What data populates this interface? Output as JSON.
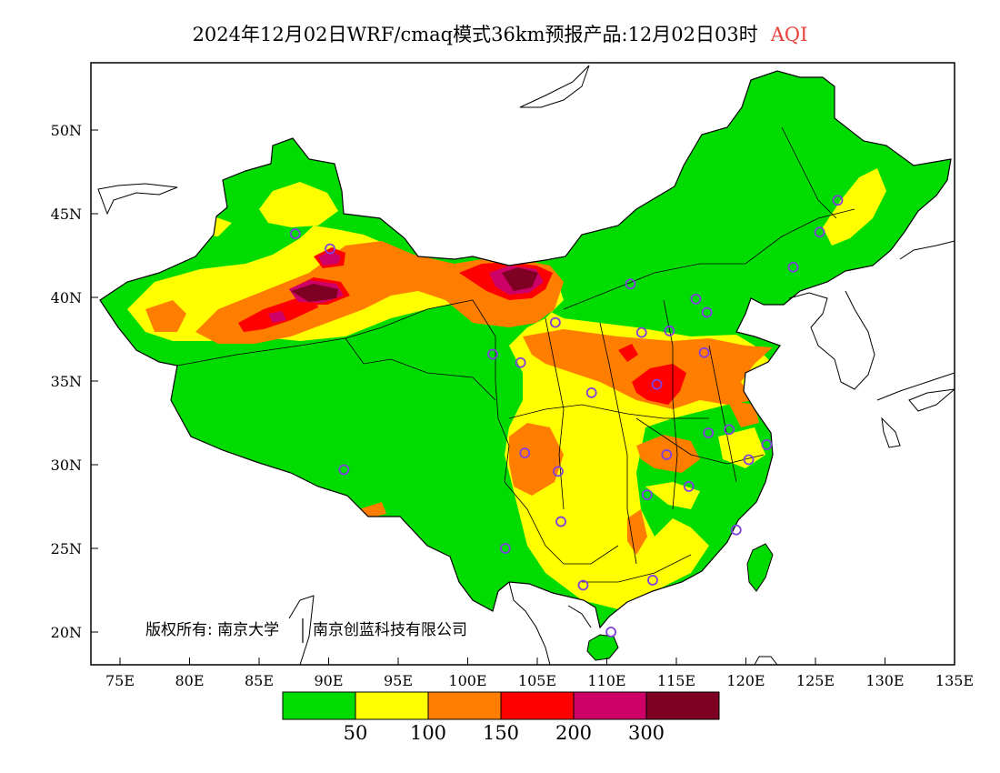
{
  "title": {
    "main": "2024年12月02日WRF/cmaq模式36km预报产品:12月02日03时",
    "variable": "AQI",
    "variable_color": "#e8403a"
  },
  "map": {
    "lon_range": [
      73,
      135
    ],
    "lat_range": [
      18,
      54
    ],
    "lat_ticks": [
      "20N",
      "25N",
      "30N",
      "35N",
      "40N",
      "45N",
      "50N"
    ],
    "lon_ticks": [
      "75E",
      "80E",
      "85E",
      "90E",
      "95E",
      "100E",
      "105E",
      "110E",
      "115E",
      "120E",
      "125E",
      "130E",
      "135E"
    ],
    "copyright_left": "版权所有: 南京大学",
    "copyright_right": "南京创蓝科技有限公司",
    "stations_color": "#8040e0",
    "stations": [
      [
        87.6,
        43.8
      ],
      [
        90.1,
        42.9
      ],
      [
        103.8,
        36.1
      ],
      [
        101.8,
        36.6
      ],
      [
        106.3,
        38.5
      ],
      [
        111.7,
        40.8
      ],
      [
        116.4,
        39.9
      ],
      [
        117.2,
        39.1
      ],
      [
        112.5,
        37.9
      ],
      [
        114.5,
        38.0
      ],
      [
        117.0,
        36.7
      ],
      [
        113.6,
        34.8
      ],
      [
        108.9,
        34.3
      ],
      [
        117.3,
        31.9
      ],
      [
        118.8,
        32.1
      ],
      [
        121.5,
        31.2
      ],
      [
        120.2,
        30.3
      ],
      [
        114.3,
        30.6
      ],
      [
        104.1,
        30.7
      ],
      [
        106.5,
        29.6
      ],
      [
        112.9,
        28.2
      ],
      [
        115.9,
        28.7
      ],
      [
        119.3,
        26.1
      ],
      [
        106.7,
        26.6
      ],
      [
        102.7,
        25.0
      ],
      [
        108.3,
        22.8
      ],
      [
        113.3,
        23.1
      ],
      [
        110.3,
        20.0
      ],
      [
        91.1,
        29.7
      ],
      [
        123.4,
        41.8
      ],
      [
        125.3,
        43.9
      ],
      [
        126.6,
        45.8
      ]
    ]
  },
  "legend": {
    "colors": [
      "#00dc00",
      "#ffff00",
      "#ff7e00",
      "#ff0000",
      "#cc0066",
      "#7e0023"
    ],
    "levels": [
      "50",
      "100",
      "150",
      "200",
      "300"
    ]
  }
}
